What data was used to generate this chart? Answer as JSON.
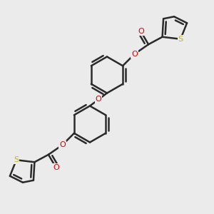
{
  "background_color": "#ebebeb",
  "bond_color": "#2a2a2a",
  "bond_width": 1.8,
  "O_color": "#dd0000",
  "S_color": "#bbbb00",
  "figsize": [
    3.0,
    3.0
  ],
  "dpi": 100,
  "xlim": [
    0,
    10
  ],
  "ylim": [
    0,
    10
  ]
}
